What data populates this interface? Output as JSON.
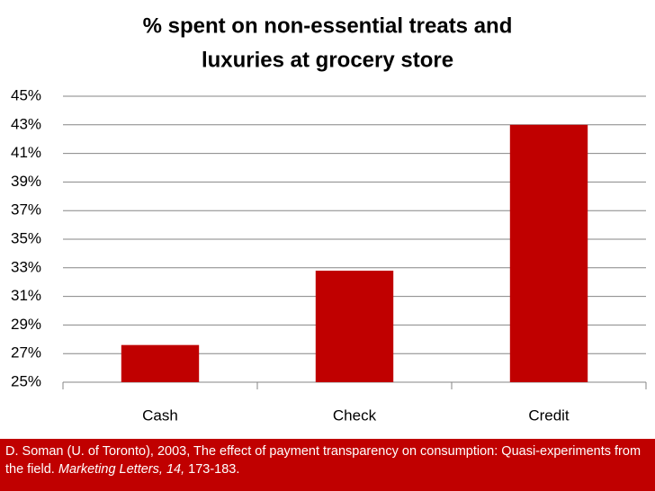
{
  "chart_data": {
    "type": "bar",
    "title": [
      "% spent on non-essential treats and",
      "luxuries at grocery store"
    ],
    "categories": [
      "Cash",
      "Check",
      "Credit"
    ],
    "values": [
      27.6,
      32.8,
      43
    ],
    "color": "#c00000",
    "ylim": [
      25,
      45
    ],
    "yticks": [
      {
        "value": 25,
        "label": "25%"
      },
      {
        "value": 27,
        "label": "27%"
      },
      {
        "value": 29,
        "label": "29%"
      },
      {
        "value": 31,
        "label": "31%"
      },
      {
        "value": 33,
        "label": "33%"
      },
      {
        "value": 35,
        "label": "35%"
      },
      {
        "value": 37,
        "label": "37%"
      },
      {
        "value": 39,
        "label": "39%"
      },
      {
        "value": 41,
        "label": "41%"
      },
      {
        "value": 43,
        "label": "43%"
      },
      {
        "value": 45,
        "label": "45%"
      }
    ],
    "grid": true,
    "source": {
      "text": "D. Soman (U. of Toronto), 2003, The effect of payment transparency on consumption: Quasi-experiments from the field.",
      "journal": "Marketing Letters, 14,",
      "pages": "173-183."
    }
  }
}
